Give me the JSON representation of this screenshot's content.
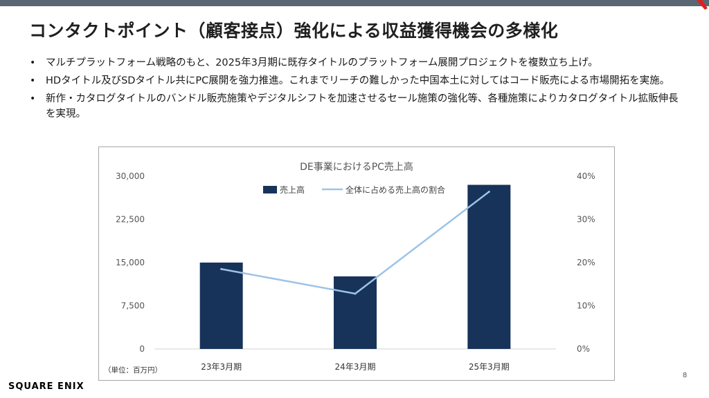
{
  "title": "コンタクトポイント（顧客接点）強化による収益獲得機会の多様化",
  "bullets": [
    "マルチプラットフォーム戦略のもと、2025年3月期に既存タイトルのプラットフォーム展開プロジェクトを複数立ち上げ。",
    "HDタイトル及びSDタイトル共にPC展開を強力推進。これまでリーチの難しかった中国本土に対してはコード販売による市場開拓を実施。",
    "新作・カタログタイトルのバンドル販売施策やデジタルシフトを加速させるセール施策の強化等、各種施策によりカタログタイトル拡販伸長を実現。"
  ],
  "unit_note": "（単位：百万円）",
  "page_number": "8",
  "logo": "SQUARE ENIX",
  "colors": {
    "bar": "#17335a",
    "line": "#9dc3e6",
    "top_bar": "#5b6673",
    "accent": "#e0201c"
  },
  "chart_data": {
    "type": "bar",
    "title": "DE事業におけるPC売上高",
    "categories": [
      "23年3月期",
      "24年3月期",
      "25年3月期"
    ],
    "series": [
      {
        "name": "売上高",
        "type": "bar",
        "axis": "left",
        "values": [
          15000,
          12600,
          28500
        ]
      },
      {
        "name": "全体に占める売上高の割合",
        "type": "line",
        "axis": "right",
        "values": [
          18.5,
          12.8,
          36.4
        ]
      }
    ],
    "y_left": {
      "min": 0,
      "max": 30000,
      "ticks": [
        "0",
        "7,500",
        "15,000",
        "22,500",
        "30,000"
      ],
      "tick_values": [
        0,
        7500,
        15000,
        22500,
        30000
      ]
    },
    "y_right": {
      "min": 0,
      "max": 40,
      "ticks": [
        "0%",
        "10%",
        "20%",
        "30%",
        "40%"
      ],
      "tick_values": [
        0,
        10,
        20,
        30,
        40
      ]
    },
    "legend_position": "top-center",
    "grid": false
  }
}
